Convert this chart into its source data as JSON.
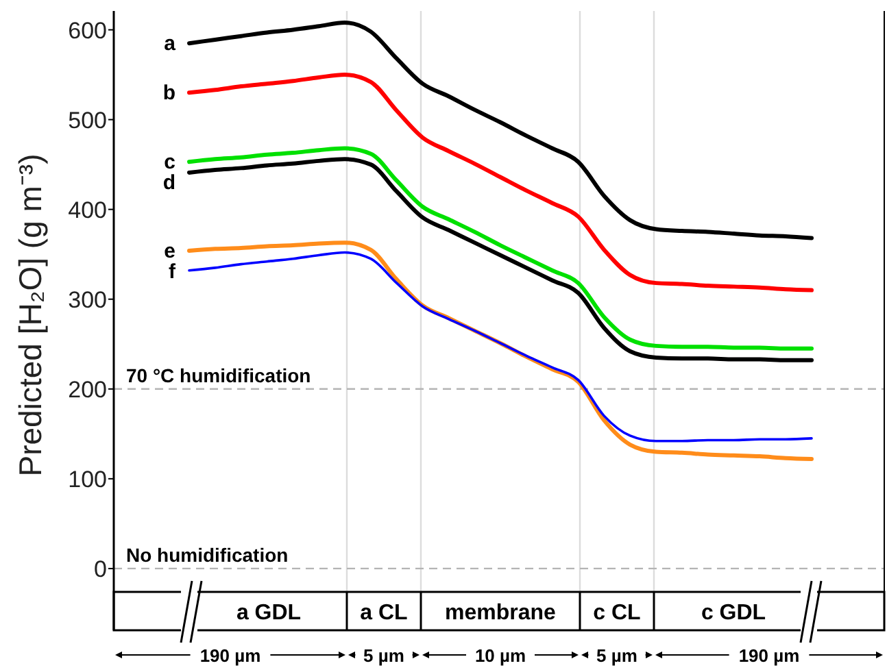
{
  "chart_data": {
    "type": "line",
    "ylabel": "Predicted [H₂O] (g m⁻³)",
    "categories": [
      null,
      null,
      null,
      null,
      null,
      null,
      null,
      null,
      null,
      null,
      null,
      null,
      null,
      null,
      null,
      null,
      null,
      null,
      null,
      null,
      null,
      null,
      null,
      null,
      null
    ],
    "series": [
      {
        "name": "a",
        "color": "#000000",
        "values": [
          585,
          589,
          593,
          597,
          600,
          604,
          608,
          598,
          568,
          540,
          526,
          511,
          497,
          482,
          468,
          453,
          415,
          388,
          378,
          376,
          375,
          373,
          371,
          370,
          368
        ]
      },
      {
        "name": "b",
        "color": "#ff0000",
        "values": [
          530,
          533,
          537,
          540,
          543,
          547,
          550,
          542,
          510,
          480,
          465,
          451,
          436,
          421,
          407,
          392,
          355,
          327,
          318,
          317,
          315,
          314,
          313,
          311,
          310
        ]
      },
      {
        "name": "c",
        "color": "#00e000",
        "values": [
          453,
          456,
          458,
          461,
          463,
          466,
          468,
          462,
          432,
          403,
          389,
          375,
          360,
          346,
          332,
          318,
          280,
          255,
          248,
          247,
          247,
          246,
          246,
          245,
          245
        ]
      },
      {
        "name": "d",
        "color": "#000000",
        "values": [
          441,
          444,
          446,
          449,
          451,
          454,
          456,
          450,
          420,
          391,
          377,
          363,
          349,
          335,
          321,
          307,
          268,
          242,
          235,
          234,
          234,
          233,
          233,
          232,
          232
        ]
      },
      {
        "name": "e",
        "color": "#ff8c1a",
        "values": [
          354,
          356,
          357,
          359,
          360,
          362,
          363,
          355,
          322,
          293,
          279,
          265,
          251,
          236,
          222,
          208,
          165,
          138,
          130,
          129,
          127,
          126,
          125,
          123,
          122
        ]
      },
      {
        "name": "f",
        "color": "#0000ff",
        "values": [
          332,
          335,
          339,
          342,
          345,
          349,
          352,
          345,
          318,
          292,
          278,
          265,
          251,
          237,
          224,
          210,
          170,
          148,
          142,
          142,
          143,
          143,
          144,
          144,
          145
        ]
      }
    ],
    "ylim": [
      -26,
      621
    ],
    "yticks": [
      0,
      100,
      200,
      300,
      400,
      500,
      600
    ],
    "ref_lines": [
      {
        "axis": "y",
        "value": 200,
        "label": "70 °C humidification",
        "color": "#b4b4b4",
        "line_style": "dashed"
      },
      {
        "axis": "y",
        "value": 0,
        "label": "No humidification",
        "color": "#b4b4b4",
        "line_style": "dashed"
      }
    ],
    "annotations": [
      "a GDL",
      "a CL",
      "membrane",
      "c CL",
      "c GDL",
      "190 µm",
      "5 µm",
      "10 µm",
      "5 µm",
      "190 µm"
    ],
    "line_style": "solid",
    "marker": "none",
    "grid": "x"
  }
}
